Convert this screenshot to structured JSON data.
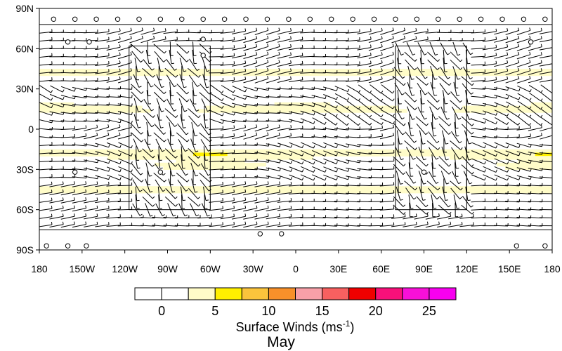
{
  "chart_data": {
    "type": "heatmap",
    "variant": "wind-barbs-over-filled-contours",
    "title": "May",
    "colorbar_title": "Surface Winds (ms",
    "colorbar_title_exponent": "-1",
    "colorbar_title_suffix": ")",
    "x_ticks": [
      {
        "lon": -180,
        "label": "180"
      },
      {
        "lon": -150,
        "label": "150W"
      },
      {
        "lon": -120,
        "label": "120W"
      },
      {
        "lon": -90,
        "label": "90W"
      },
      {
        "lon": -60,
        "label": "60W"
      },
      {
        "lon": -30,
        "label": "30W"
      },
      {
        "lon": 0,
        "label": "0"
      },
      {
        "lon": 30,
        "label": "30E"
      },
      {
        "lon": 60,
        "label": "60E"
      },
      {
        "lon": 90,
        "label": "90E"
      },
      {
        "lon": 120,
        "label": "120E"
      },
      {
        "lon": 150,
        "label": "150E"
      },
      {
        "lon": 180,
        "label": "180"
      }
    ],
    "y_ticks": [
      {
        "lat": 90,
        "label": "90N"
      },
      {
        "lat": 60,
        "label": "60N"
      },
      {
        "lat": 30,
        "label": "30N"
      },
      {
        "lat": 0,
        "label": "0"
      },
      {
        "lat": -30,
        "label": "30S"
      },
      {
        "lat": -60,
        "label": "60S"
      },
      {
        "lat": -90,
        "label": "90S"
      }
    ],
    "xlim": [
      -180,
      180
    ],
    "ylim": [
      -90,
      90
    ],
    "colorbar": {
      "levels": [
        0,
        2.5,
        5,
        7.5,
        10,
        12.5,
        15,
        17.5,
        20,
        22.5,
        25,
        27.5
      ],
      "colors": [
        "#ffffff",
        "#ffffff",
        "#fffcc8",
        "#fff000",
        "#fbc43c",
        "#f8902a",
        "#f8a0a8",
        "#f86060",
        "#f00000",
        "#f8107a",
        "#f810d8",
        "#f800f0"
      ],
      "labels": [
        {
          "value": 0,
          "label": "0"
        },
        {
          "value": 5,
          "label": "5"
        },
        {
          "value": 10,
          "label": "10"
        },
        {
          "value": 15,
          "label": "15"
        },
        {
          "value": 20,
          "label": "20"
        },
        {
          "value": 25,
          "label": "25"
        }
      ]
    },
    "speed_bands": [
      {
        "lat": 42,
        "speed": 6.5
      },
      {
        "lat": 30,
        "speed": 3.2
      },
      {
        "lat": 15,
        "speed": 6
      },
      {
        "lat": 0,
        "speed": 3
      },
      {
        "lat": -18,
        "speed": 6.5
      },
      {
        "lat": -28,
        "speed": 4
      },
      {
        "lat": -45,
        "speed": 6.5
      },
      {
        "lat": -58,
        "speed": 3.2
      }
    ],
    "highlight_regions": [
      {
        "lon_min": -117,
        "lon_max": -60,
        "lat_min": -60,
        "lat_max": 62
      },
      {
        "lon_min": 70,
        "lon_max": 120,
        "lat_min": -60,
        "lat_max": 62
      }
    ],
    "calm_circles": [
      {
        "lon": -170,
        "lat": 82
      },
      {
        "lon": -155,
        "lat": 82
      },
      {
        "lon": -140,
        "lat": 82
      },
      {
        "lon": -125,
        "lat": 82
      },
      {
        "lon": -110,
        "lat": 82
      },
      {
        "lon": -95,
        "lat": 82
      },
      {
        "lon": -80,
        "lat": 82
      },
      {
        "lon": -65,
        "lat": 82
      },
      {
        "lon": -50,
        "lat": 82
      },
      {
        "lon": -35,
        "lat": 82
      },
      {
        "lon": -20,
        "lat": 82
      },
      {
        "lon": -5,
        "lat": 82
      },
      {
        "lon": 10,
        "lat": 82
      },
      {
        "lon": 25,
        "lat": 82
      },
      {
        "lon": 40,
        "lat": 82
      },
      {
        "lon": 55,
        "lat": 82
      },
      {
        "lon": 70,
        "lat": 82
      },
      {
        "lon": 85,
        "lat": 82
      },
      {
        "lon": 100,
        "lat": 82
      },
      {
        "lon": 115,
        "lat": 82
      },
      {
        "lon": 130,
        "lat": 82
      },
      {
        "lon": 145,
        "lat": 82
      },
      {
        "lon": 160,
        "lat": 82
      },
      {
        "lon": 175,
        "lat": 82
      },
      {
        "lon": -160,
        "lat": 65
      },
      {
        "lon": -145,
        "lat": 65
      },
      {
        "lon": -65,
        "lat": 67
      },
      {
        "lon": 165,
        "lat": 65
      },
      {
        "lon": -65,
        "lat": 55
      },
      {
        "lon": -155,
        "lat": -32
      },
      {
        "lon": -95,
        "lat": -32
      },
      {
        "lon": 90,
        "lat": -32
      },
      {
        "lon": -25,
        "lat": -78
      },
      {
        "lon": -10,
        "lat": -78
      },
      {
        "lon": -175,
        "lat": -87
      },
      {
        "lon": -160,
        "lat": -87
      },
      {
        "lon": -147,
        "lat": -87
      },
      {
        "lon": 155,
        "lat": -87
      },
      {
        "lon": 175,
        "lat": -87
      }
    ]
  }
}
